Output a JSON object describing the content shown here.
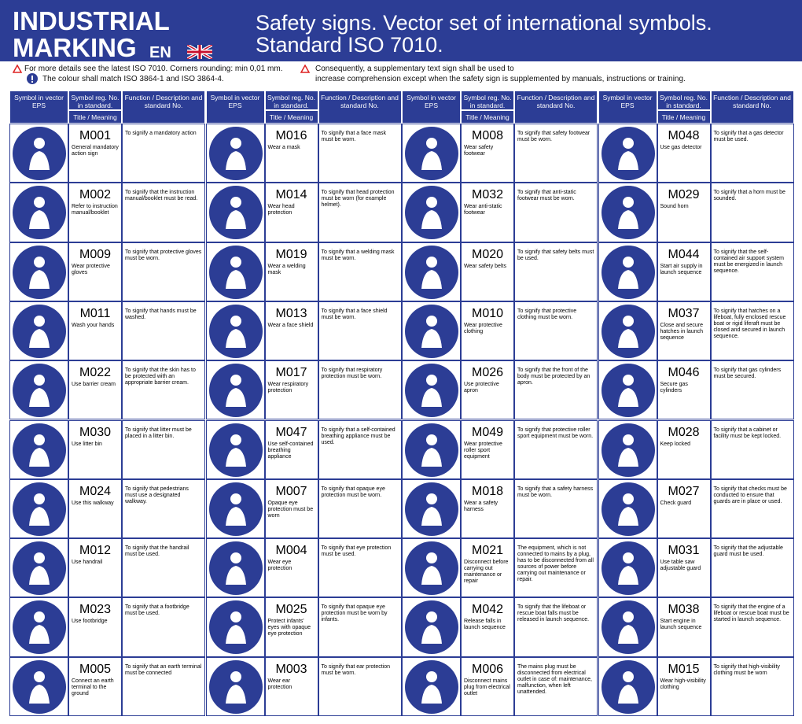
{
  "header": {
    "brand": [
      "INDUSTRIAL",
      "MARKING"
    ],
    "lang": "EN",
    "title": [
      "Safety signs. Vector set of international symbols.",
      "Standard ISO 7010."
    ]
  },
  "notes": {
    "left": [
      "For more details see the latest ISO 7010.  Corners rounding: min 0,01 mm.",
      "The colour shall match ISO 3864-1 and ISO 3864-4."
    ],
    "right": [
      "Consequently, a supplementary text sign shall be used to",
      "increase comprehension except when the safety sign is supplemented by manuals, instructions or training."
    ]
  },
  "table": {
    "headers": {
      "symbol": "Symbol in vector EPS",
      "reg": "Symbol reg. No. in standard.",
      "meaning": "Title / Meaning",
      "function": "Function / Description and standard No."
    },
    "columns": [
      [
        {
          "code": "M001",
          "meaning": "General mandatory action sign",
          "description": "To signify a mandatory action"
        },
        {
          "code": "M002",
          "meaning": "Refer to instruction manual/booklet",
          "description": "To signify that the instruction manual/booklet must be read."
        },
        {
          "code": "M009",
          "meaning": "Wear protective gloves",
          "description": "To signify that protective gloves must be worn."
        },
        {
          "code": "M011",
          "meaning": "Wash your hands",
          "description": "To signify that hands must be washed."
        },
        {
          "code": "M022",
          "meaning": "Use barrier cream",
          "description": "To signify that the skin has to be protected with an appropriate barrier cream."
        },
        {
          "code": "M030",
          "meaning": "Use litter bin",
          "description": "To signify that litter must be placed in a litter bin."
        },
        {
          "code": "M024",
          "meaning": "Use this walkway",
          "description": "To signify that pedestrians must use a designated walkway."
        },
        {
          "code": "M012",
          "meaning": "Use handrail",
          "description": "To signify that the handrail must be used."
        },
        {
          "code": "M023",
          "meaning": "Use footbridge",
          "description": "To signify that a footbridge must be used."
        },
        {
          "code": "M005",
          "meaning": "Connect an earth terminal to the ground",
          "description": "To signify that an earth terminal must be connected"
        }
      ],
      [
        {
          "code": "M016",
          "meaning": "Wear a mask",
          "description": "To signify that a face mask must be worn."
        },
        {
          "code": "M014",
          "meaning": "Wear head protection",
          "description": "To signify that head protection must be worn (for example helmet)."
        },
        {
          "code": "M019",
          "meaning": "Wear a welding mask",
          "description": "To signify that a welding mask must be worn."
        },
        {
          "code": "M013",
          "meaning": "Wear a face shield",
          "description": "To signify that a face shield must be worn."
        },
        {
          "code": "M017",
          "meaning": "Wear respiratory protection",
          "description": "To signify that respiratory protection must be worn."
        },
        {
          "code": "M047",
          "meaning": "Use self-contained breathing appliance",
          "description": "To signify that a self-contained breathing appliance must be used."
        },
        {
          "code": "M007",
          "meaning": "Opaque eye protection must be worn",
          "description": "To signify that opaque eye protection must be worn."
        },
        {
          "code": "M004",
          "meaning": "Wear eye protection",
          "description": "To signify that eye protection must be used."
        },
        {
          "code": "M025",
          "meaning": "Protect infants' eyes with opaque eye protection",
          "description": "To signify that opaque eye protection must be worn by infants."
        },
        {
          "code": "M003",
          "meaning": "Wear ear protection",
          "description": "To signify that ear protection must be worn."
        }
      ],
      [
        {
          "code": "M008",
          "meaning": "Wear safety footwear",
          "description": "To signify that safety footwear must be worn."
        },
        {
          "code": "M032",
          "meaning": "Wear anti-static footwear",
          "description": "To signify that anti-static footwear must be worn."
        },
        {
          "code": "M020",
          "meaning": "Wear safety belts",
          "description": "To signify that safety belts must be used."
        },
        {
          "code": "M010",
          "meaning": "Wear protective clothing",
          "description": "To signify that protective clothing must be worn."
        },
        {
          "code": "M026",
          "meaning": "Use protective apron",
          "description": "To signify that the front of the body must be protected by an apron."
        },
        {
          "code": "M049",
          "meaning": "Wear protective roller sport equipment",
          "description": "To signify that protective roller sport equipment must be worn."
        },
        {
          "code": "M018",
          "meaning": "Wear a safety harness",
          "description": "To signify that a safety harness must be worn."
        },
        {
          "code": "M021",
          "meaning": "Disconnect before carrying out maintenance or repair",
          "description": "The equipment, which is not connected to mains by a plug, has to be disconnected from all sources of power before carrying out maintenance or repair."
        },
        {
          "code": "M042",
          "meaning": "Release falls in launch sequence",
          "description": "To signify that the lifeboat or rescue boat falls must be released in launch sequence."
        },
        {
          "code": "M006",
          "meaning": "Disconnect mains plug from electrical outlet",
          "description": "The mains plug must be disconnected from electrical outlet in case of: maintenance, malfunction, when left unattended."
        }
      ],
      [
        {
          "code": "M048",
          "meaning": "Use gas detector",
          "description": "To signify that a gas detector must be used."
        },
        {
          "code": "M029",
          "meaning": "Sound horn",
          "description": "To signify that a horn must be sounded."
        },
        {
          "code": "M044",
          "meaning": "Start air supply in launch sequence",
          "description": "To signify that the self-contained air support system must be energized in launch sequence."
        },
        {
          "code": "M037",
          "meaning": "Close and secure hatches in launch sequence",
          "description": "To signify that hatches on a lifeboat, fully enclosed rescue boat or rigid liferaft must be closed and secured in launch sequence."
        },
        {
          "code": "M046",
          "meaning": "Secure gas cylinders",
          "description": "To signify that gas cylinders must be secured."
        },
        {
          "code": "M028",
          "meaning": "Keep locked",
          "description": "To signify that a cabinet or facility must be kept locked."
        },
        {
          "code": "M027",
          "meaning": "Check guard",
          "description": "To signify that checks must be conducted to ensure that guards are in place or used."
        },
        {
          "code": "M031",
          "meaning": "Use table saw adjustable guard",
          "description": "To signify that the adjustable guard must be used."
        },
        {
          "code": "M038",
          "meaning": "Start engine in launch sequence",
          "description": "To signify that the engine of a lifeboat or rescue boat must be started in launch sequence."
        },
        {
          "code": "M015",
          "meaning": "Wear high-visibility clothing",
          "description": "To signify that high-visibility clothing must be worn"
        }
      ]
    ]
  }
}
